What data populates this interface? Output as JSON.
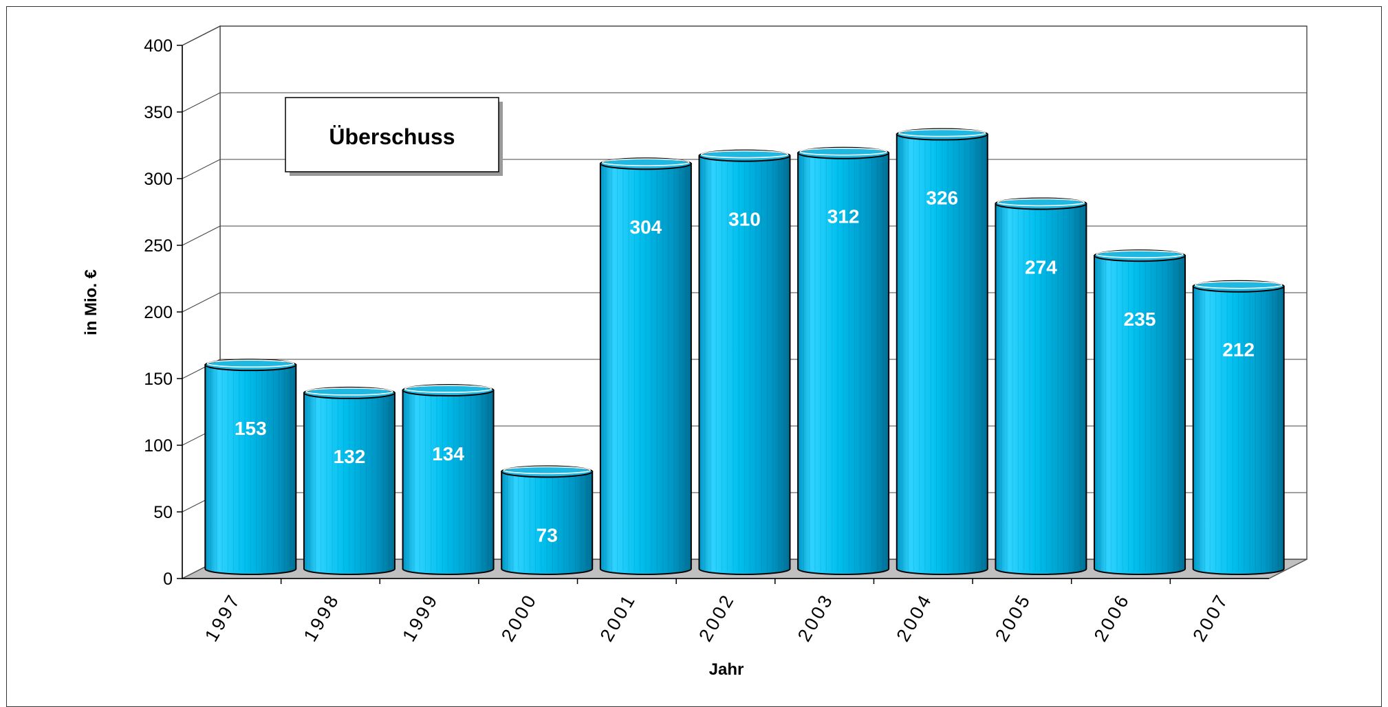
{
  "chart_data": {
    "type": "bar",
    "title": "Überschuss",
    "xlabel": "Jahr",
    "ylabel": "in Mio. €",
    "categories": [
      "1997",
      "1998",
      "1999",
      "2000",
      "2001",
      "2002",
      "2003",
      "2004",
      "2005",
      "2006",
      "2007"
    ],
    "values": [
      153,
      132,
      134,
      73,
      304,
      310,
      312,
      326,
      274,
      235,
      212
    ],
    "ylim": [
      0,
      400
    ],
    "yticks": [
      0,
      50,
      100,
      150,
      200,
      250,
      300,
      350,
      400
    ],
    "grid": true,
    "style": "3d-cylinder",
    "colors": {
      "bar_light": "#33d6ff",
      "bar_main": "#00b3e6",
      "bar_dark": "#0080a8",
      "bar_top": "#1fb8e0",
      "floor": "#c0c0c0"
    }
  }
}
